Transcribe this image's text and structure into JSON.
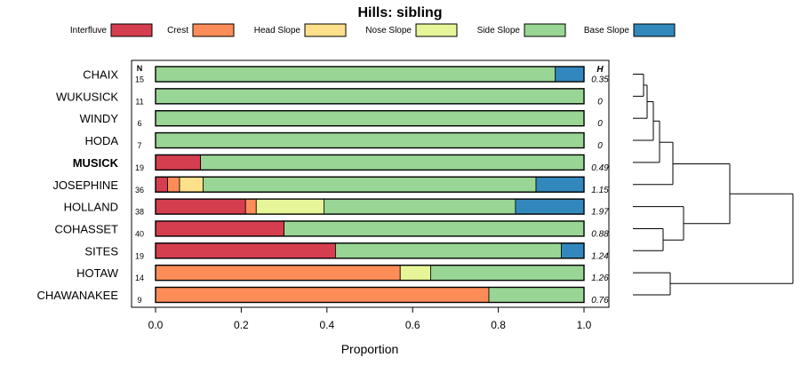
{
  "chart_data": {
    "type": "bar",
    "orientation": "horizontal-stacked",
    "title": "Hills: sibling",
    "xlabel": "Proportion",
    "xlim": [
      0,
      1
    ],
    "x_ticks": [
      {
        "value": 0,
        "label": "0.0"
      },
      {
        "value": 0.2,
        "label": "0.2"
      },
      {
        "value": 0.4,
        "label": "0.4"
      },
      {
        "value": 0.6,
        "label": "0.6"
      },
      {
        "value": 0.8,
        "label": "0.8"
      },
      {
        "value": 1,
        "label": "1.0"
      }
    ],
    "n_header": "N",
    "h_header": "H",
    "legend_position": "top",
    "legend": [
      {
        "name": "Interfluve",
        "color": "#d53e4f"
      },
      {
        "name": "Crest",
        "color": "#fc8d59"
      },
      {
        "name": "Head Slope",
        "color": "#fee08b"
      },
      {
        "name": "Nose Slope",
        "color": "#e6f598"
      },
      {
        "name": "Side Slope",
        "color": "#99d594"
      },
      {
        "name": "Base Slope",
        "color": "#3288bd"
      }
    ],
    "rows": [
      {
        "name": "CHAIX",
        "n": "15",
        "h": "0.35",
        "bold": false,
        "values": [
          0,
          0,
          0,
          0,
          0.933,
          0.067
        ]
      },
      {
        "name": "WUKUSICK",
        "n": "11",
        "h": "0",
        "bold": false,
        "values": [
          0,
          0,
          0,
          0,
          1,
          0
        ]
      },
      {
        "name": "WINDY",
        "n": "6",
        "h": "0",
        "bold": false,
        "values": [
          0,
          0,
          0,
          0,
          1,
          0
        ]
      },
      {
        "name": "HODA",
        "n": "7",
        "h": "0",
        "bold": false,
        "values": [
          0,
          0,
          0,
          0,
          1,
          0
        ]
      },
      {
        "name": "MUSICK",
        "n": "19",
        "h": "0.49",
        "bold": true,
        "values": [
          0.105,
          0,
          0,
          0,
          0.895,
          0
        ]
      },
      {
        "name": "JOSEPHINE",
        "n": "36",
        "h": "1.15",
        "bold": false,
        "values": [
          0.028,
          0.028,
          0.055,
          0,
          0.777,
          0.112
        ]
      },
      {
        "name": "HOLLAND",
        "n": "38",
        "h": "1.97",
        "bold": false,
        "values": [
          0.21,
          0.025,
          0,
          0.158,
          0.447,
          0.16
        ]
      },
      {
        "name": "COHASSET",
        "n": "40",
        "h": "0.88",
        "bold": false,
        "values": [
          0.3,
          0,
          0,
          0,
          0.7,
          0
        ]
      },
      {
        "name": "SITES",
        "n": "19",
        "h": "1.24",
        "bold": false,
        "values": [
          0.42,
          0,
          0,
          0,
          0.527,
          0.053
        ]
      },
      {
        "name": "HOTAW",
        "n": "14",
        "h": "1.26",
        "bold": false,
        "values": [
          0,
          0.571,
          0,
          0.071,
          0.358,
          0
        ]
      },
      {
        "name": "CHAWANAKEE",
        "n": "9",
        "h": "0.76",
        "bold": false,
        "values": [
          0,
          0.778,
          0,
          0,
          0.222,
          0
        ]
      }
    ]
  }
}
